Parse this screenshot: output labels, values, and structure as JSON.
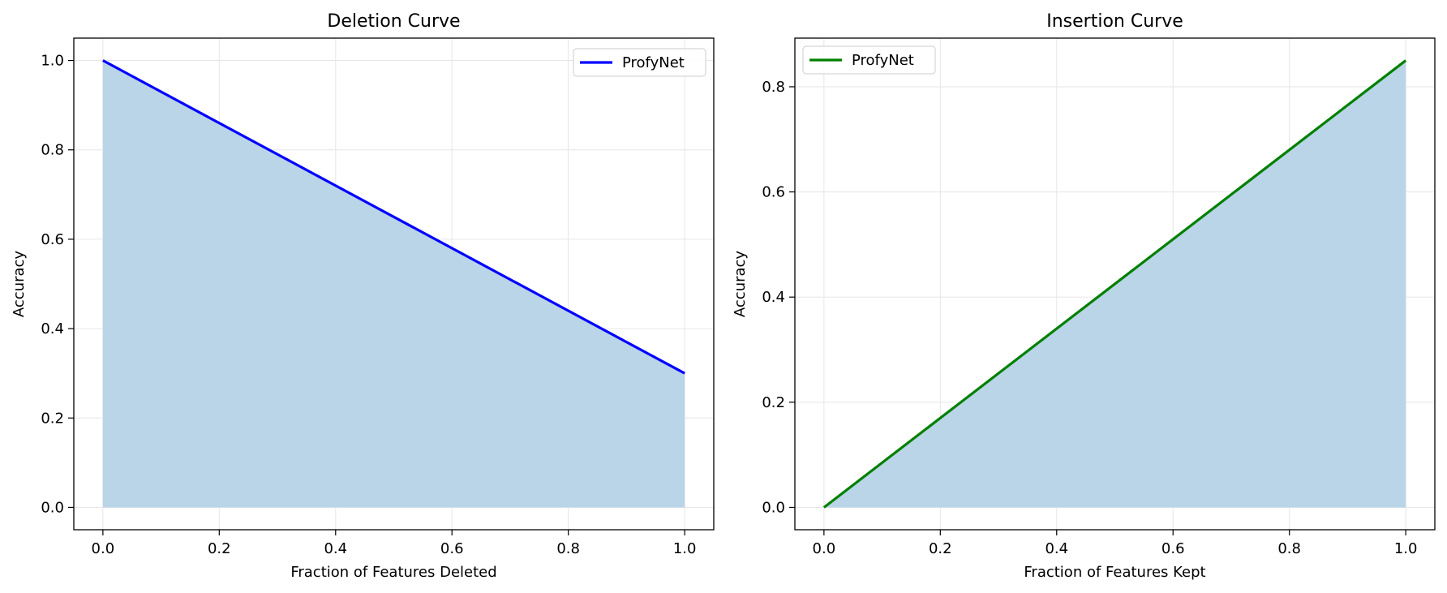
{
  "chart_data": [
    {
      "type": "area",
      "title": "Deletion Curve",
      "xlabel": "Fraction of Features Deleted",
      "ylabel": "Accuracy",
      "xlim": [
        -0.05,
        1.05
      ],
      "ylim": [
        -0.05,
        1.05
      ],
      "xticks": [
        0.0,
        0.2,
        0.4,
        0.6,
        0.8,
        1.0
      ],
      "yticks": [
        0.0,
        0.2,
        0.4,
        0.6,
        0.8,
        1.0
      ],
      "tick_labels_x": [
        "0.0",
        "0.2",
        "0.4",
        "0.6",
        "0.8",
        "1.0"
      ],
      "tick_labels_y": [
        "0.0",
        "0.2",
        "0.4",
        "0.6",
        "0.8",
        "1.0"
      ],
      "grid": true,
      "legend_position": "upper right",
      "fill_color": "#bad4e8",
      "series": [
        {
          "name": "ProfyNet",
          "color": "#0000ff",
          "x": [
            0.0,
            1.0
          ],
          "y": [
            1.0,
            0.3
          ]
        }
      ]
    },
    {
      "type": "area",
      "title": "Insertion Curve",
      "xlabel": "Fraction of Features Kept",
      "ylabel": "Accuracy",
      "xlim": [
        -0.05,
        1.05
      ],
      "ylim": [
        -0.0425,
        0.8925
      ],
      "xticks": [
        0.0,
        0.2,
        0.4,
        0.6,
        0.8,
        1.0
      ],
      "yticks": [
        0.0,
        0.2,
        0.4,
        0.6,
        0.8
      ],
      "tick_labels_x": [
        "0.0",
        "0.2",
        "0.4",
        "0.6",
        "0.8",
        "1.0"
      ],
      "tick_labels_y": [
        "0.0",
        "0.2",
        "0.4",
        "0.6",
        "0.8"
      ],
      "grid": true,
      "legend_position": "upper left",
      "fill_color": "#bad4e8",
      "series": [
        {
          "name": "ProfyNet",
          "color": "#008000",
          "x": [
            0.0,
            1.0
          ],
          "y": [
            0.0,
            0.85
          ]
        }
      ]
    }
  ]
}
